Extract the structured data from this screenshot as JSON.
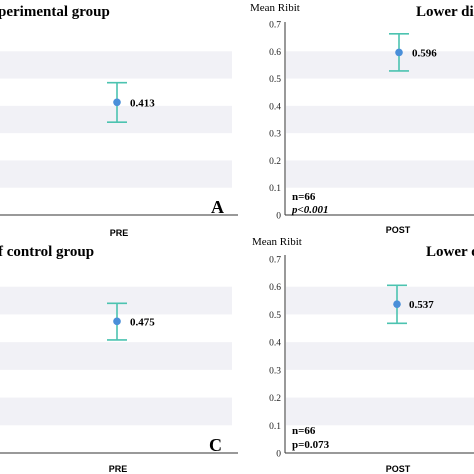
{
  "chart_data": [
    {
      "type": "scatter",
      "title": "perimental group",
      "panel_letter": "A",
      "ylabel": "",
      "categories": [
        "PRE"
      ],
      "series": [
        {
          "values": [
            0.413
          ],
          "ci_low": [
            0.34
          ],
          "ci_high": [
            0.485
          ]
        }
      ],
      "value_labels": [
        "0.413"
      ],
      "annotations": [],
      "ylim": [
        0,
        0.7
      ],
      "grid": "alternating horizontal bands",
      "tick_labels": []
    },
    {
      "type": "scatter",
      "title": "Lower dis",
      "panel_letter": "",
      "ylabel": "Mean Ribit",
      "categories": [
        "POST"
      ],
      "series": [
        {
          "values": [
            0.596
          ],
          "ci_low": [
            0.528
          ],
          "ci_high": [
            0.664
          ]
        }
      ],
      "value_labels": [
        "0.596"
      ],
      "annotations": [
        "n=66",
        "p<0.001"
      ],
      "ylim": [
        0,
        0.7
      ],
      "grid": "alternating horizontal bands",
      "tick_labels": [
        "0",
        "0.1",
        "0.2",
        "0.3",
        "0.4",
        "0.5",
        "0.6",
        "0.7"
      ]
    },
    {
      "type": "scatter",
      "title": "f control group",
      "panel_letter": "C",
      "ylabel": "",
      "categories": [
        "PRE"
      ],
      "series": [
        {
          "values": [
            0.475
          ],
          "ci_low": [
            0.408
          ],
          "ci_high": [
            0.54
          ]
        }
      ],
      "value_labels": [
        "0.475"
      ],
      "annotations": [],
      "ylim": [
        0,
        0.7
      ],
      "grid": "alternating horizontal bands",
      "tick_labels": []
    },
    {
      "type": "scatter",
      "title": "Lower d",
      "panel_letter": "",
      "ylabel": "Mean Ribit",
      "categories": [
        "POST"
      ],
      "series": [
        {
          "values": [
            0.537
          ],
          "ci_low": [
            0.468
          ],
          "ci_high": [
            0.605
          ]
        }
      ],
      "value_labels": [
        "0.537"
      ],
      "annotations": [
        "n=66",
        "p=0.073"
      ],
      "ylim": [
        0,
        0.7
      ],
      "grid": "alternating horizontal bands",
      "tick_labels": [
        "0",
        "0.1",
        "0.2",
        "0.3",
        "0.4",
        "0.5",
        "0.6",
        "0.7"
      ]
    }
  ],
  "colors": {
    "band": "#f1f1f6",
    "errorbar": "#4cc3b0",
    "point": "#4a8fd9",
    "axis": "#333333",
    "text": "#000000"
  }
}
